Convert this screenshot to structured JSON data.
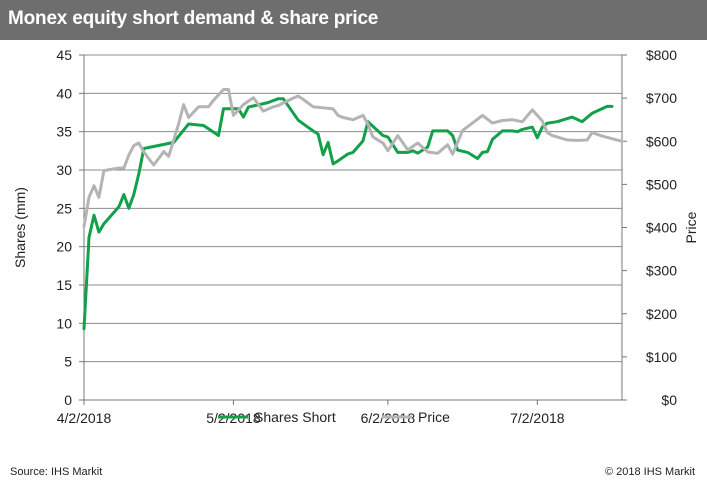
{
  "header": {
    "title": "Monex equity short demand & share price"
  },
  "footer": {
    "source": "Source: IHS Markit",
    "copyright": "© 2018 IHS Markit"
  },
  "colors": {
    "shares_short": "#12a04a",
    "price": "#b4b4b4",
    "title_bar": "#6e6e6e"
  },
  "chart_data": {
    "type": "line",
    "title": "Monex equity short demand & share price",
    "ylabel_left": "Shares (mm)",
    "ylabel_right": "Price",
    "ylim_left": [
      0,
      45
    ],
    "ylim_right": [
      0,
      800
    ],
    "yticks_left": [
      "0",
      "5",
      "10",
      "15",
      "20",
      "25",
      "30",
      "35",
      "40",
      "45"
    ],
    "yticks_right": [
      "$0",
      "$100",
      "$200",
      "$300",
      "$400",
      "$500",
      "$600",
      "$700",
      "$800"
    ],
    "x_range": [
      "2018-04-02",
      "2018-07-19"
    ],
    "xticks": [
      {
        "date": "2018-04-02",
        "label": "4/2/2018"
      },
      {
        "date": "2018-05-02",
        "label": "5/2/2018"
      },
      {
        "date": "2018-06-02",
        "label": "6/2/2018"
      },
      {
        "date": "2018-07-02",
        "label": "7/2/2018"
      }
    ],
    "grid": true,
    "legend_position": "bottom",
    "series": [
      {
        "name": "Shares Short",
        "axis": "left",
        "points": [
          [
            "2018-04-02",
            9.3
          ],
          [
            "2018-04-03",
            21.2
          ],
          [
            "2018-04-04",
            24.1
          ],
          [
            "2018-04-05",
            21.9
          ],
          [
            "2018-04-06",
            23.0
          ],
          [
            "2018-04-09",
            25.2
          ],
          [
            "2018-04-10",
            26.8
          ],
          [
            "2018-04-11",
            25.0
          ],
          [
            "2018-04-12",
            26.8
          ],
          [
            "2018-04-13",
            29.5
          ],
          [
            "2018-04-14",
            32.8
          ],
          [
            "2018-04-20",
            33.6
          ],
          [
            "2018-04-23",
            36.0
          ],
          [
            "2018-04-26",
            35.8
          ],
          [
            "2018-04-29",
            34.5
          ],
          [
            "2018-04-30",
            38.0
          ],
          [
            "2018-05-03",
            38.0
          ],
          [
            "2018-05-04",
            36.9
          ],
          [
            "2018-05-05",
            38.2
          ],
          [
            "2018-05-09",
            38.8
          ],
          [
            "2018-05-11",
            39.3
          ],
          [
            "2018-05-12",
            39.3
          ],
          [
            "2018-05-15",
            36.5
          ],
          [
            "2018-05-18",
            35.1
          ],
          [
            "2018-05-19",
            34.7
          ],
          [
            "2018-05-20",
            32.0
          ],
          [
            "2018-05-21",
            33.6
          ],
          [
            "2018-05-22",
            30.8
          ],
          [
            "2018-05-23",
            31.2
          ],
          [
            "2018-05-25",
            32.1
          ],
          [
            "2018-05-26",
            32.3
          ],
          [
            "2018-05-28",
            33.8
          ],
          [
            "2018-05-29",
            36.3
          ],
          [
            "2018-06-01",
            34.5
          ],
          [
            "2018-06-02",
            34.3
          ],
          [
            "2018-06-04",
            32.3
          ],
          [
            "2018-06-06",
            32.3
          ],
          [
            "2018-06-07",
            32.5
          ],
          [
            "2018-06-08",
            32.2
          ],
          [
            "2018-06-10",
            33.0
          ],
          [
            "2018-06-11",
            35.1
          ],
          [
            "2018-06-14",
            35.1
          ],
          [
            "2018-06-15",
            34.5
          ],
          [
            "2018-06-16",
            32.6
          ],
          [
            "2018-06-18",
            32.3
          ],
          [
            "2018-06-20",
            31.5
          ],
          [
            "2018-06-21",
            32.3
          ],
          [
            "2018-06-22",
            32.4
          ],
          [
            "2018-06-23",
            34.0
          ],
          [
            "2018-06-25",
            35.1
          ],
          [
            "2018-06-27",
            35.1
          ],
          [
            "2018-06-28",
            35.0
          ],
          [
            "2018-06-29",
            35.3
          ],
          [
            "2018-07-01",
            35.6
          ],
          [
            "2018-07-02",
            34.2
          ],
          [
            "2018-07-03",
            35.6
          ],
          [
            "2018-07-04",
            36.1
          ],
          [
            "2018-07-06",
            36.3
          ],
          [
            "2018-07-09",
            36.9
          ],
          [
            "2018-07-11",
            36.3
          ],
          [
            "2018-07-13",
            37.4
          ],
          [
            "2018-07-16",
            38.3
          ],
          [
            "2018-07-17",
            38.3
          ]
        ]
      },
      {
        "name": "Price",
        "axis": "right",
        "points": [
          [
            "2018-04-02",
            402
          ],
          [
            "2018-04-03",
            470
          ],
          [
            "2018-04-04",
            497
          ],
          [
            "2018-04-05",
            470
          ],
          [
            "2018-04-06",
            532
          ],
          [
            "2018-04-09",
            538
          ],
          [
            "2018-04-10",
            538
          ],
          [
            "2018-04-11",
            568
          ],
          [
            "2018-04-12",
            590
          ],
          [
            "2018-04-13",
            596
          ],
          [
            "2018-04-14",
            575
          ],
          [
            "2018-04-16",
            545
          ],
          [
            "2018-04-17",
            560
          ],
          [
            "2018-04-18",
            576
          ],
          [
            "2018-04-19",
            565
          ],
          [
            "2018-04-21",
            640
          ],
          [
            "2018-04-22",
            685
          ],
          [
            "2018-04-23",
            655
          ],
          [
            "2018-04-25",
            680
          ],
          [
            "2018-04-27",
            680
          ],
          [
            "2018-04-28",
            695
          ],
          [
            "2018-04-30",
            720
          ],
          [
            "2018-05-01",
            720
          ],
          [
            "2018-05-02",
            660
          ],
          [
            "2018-05-04",
            685
          ],
          [
            "2018-05-06",
            701
          ],
          [
            "2018-05-08",
            670
          ],
          [
            "2018-05-10",
            680
          ],
          [
            "2018-05-11",
            683
          ],
          [
            "2018-05-14",
            700
          ],
          [
            "2018-05-15",
            705
          ],
          [
            "2018-05-16",
            697
          ],
          [
            "2018-05-18",
            680
          ],
          [
            "2018-05-22",
            675
          ],
          [
            "2018-05-23",
            660
          ],
          [
            "2018-05-24",
            655
          ],
          [
            "2018-05-26",
            650
          ],
          [
            "2018-05-28",
            660
          ],
          [
            "2018-05-29",
            640
          ],
          [
            "2018-05-30",
            610
          ],
          [
            "2018-06-01",
            596
          ],
          [
            "2018-06-02",
            578
          ],
          [
            "2018-06-04",
            613
          ],
          [
            "2018-06-06",
            580
          ],
          [
            "2018-06-08",
            596
          ],
          [
            "2018-06-10",
            575
          ],
          [
            "2018-06-12",
            572
          ],
          [
            "2018-06-14",
            592
          ],
          [
            "2018-06-15",
            570
          ],
          [
            "2018-06-17",
            625
          ],
          [
            "2018-06-21",
            660
          ],
          [
            "2018-06-23",
            642
          ],
          [
            "2018-06-25",
            648
          ],
          [
            "2018-06-27",
            650
          ],
          [
            "2018-06-29",
            645
          ],
          [
            "2018-07-01",
            673
          ],
          [
            "2018-07-03",
            647
          ],
          [
            "2018-07-04",
            620
          ],
          [
            "2018-07-05",
            613
          ],
          [
            "2018-07-06",
            610
          ],
          [
            "2018-07-08",
            603
          ],
          [
            "2018-07-10",
            602
          ],
          [
            "2018-07-12",
            603
          ],
          [
            "2018-07-13",
            620
          ],
          [
            "2018-07-15",
            612
          ],
          [
            "2018-07-17",
            606
          ],
          [
            "2018-07-19",
            600
          ]
        ]
      }
    ]
  }
}
